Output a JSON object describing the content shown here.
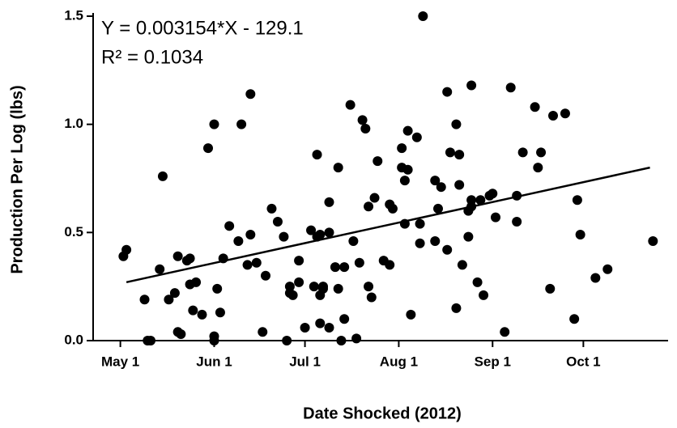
{
  "chart_data": {
    "type": "scatter",
    "x_label": "Date Shocked (2012)",
    "y_label": "Production Per Log (lbs)",
    "annotations": [
      "Y = 0.003154*X - 129.1",
      "R² = 0.1034"
    ],
    "color": "#000000",
    "xlim": [
      41021,
      41211
    ],
    "xticks": [
      {
        "value": 41030,
        "label": "May 1"
      },
      {
        "value": 41061,
        "label": "Jun 1"
      },
      {
        "value": 41091,
        "label": "Jul 1"
      },
      {
        "value": 41122,
        "label": "Aug 1"
      },
      {
        "value": 41153,
        "label": "Sep 1"
      },
      {
        "value": 41183,
        "label": "Oct 1"
      }
    ],
    "ylim": [
      0,
      1.5
    ],
    "yticks": [
      {
        "value": 0,
        "label": "0.0"
      },
      {
        "value": 0.5,
        "label": "0.5"
      },
      {
        "value": 1,
        "label": "1.0"
      },
      {
        "value": 1.5,
        "label": "1.5"
      }
    ],
    "x": [
      41031,
      41032,
      41038,
      41039,
      41040,
      41043,
      41044,
      41046,
      41048,
      41049,
      41049,
      41050,
      41052,
      41053,
      41053,
      41054,
      41055,
      41057,
      41059,
      41061,
      41061,
      41061,
      41062,
      41063,
      41064,
      41066,
      41069,
      41070,
      41072,
      41073,
      41073,
      41075,
      41077,
      41078,
      41080,
      41082,
      41084,
      41085,
      41086,
      41086,
      41087,
      41089,
      41089,
      41091,
      41093,
      41094,
      41095,
      41095,
      41096,
      41096,
      41096,
      41097,
      41097,
      41099,
      41099,
      41099,
      41101,
      41102,
      41102,
      41103,
      41104,
      41104,
      41106,
      41107,
      41108,
      41109,
      41110,
      41111,
      41112,
      41112,
      41113,
      41114,
      41115,
      41117,
      41119,
      41119,
      41120,
      41123,
      41123,
      41124,
      41124,
      41125,
      41125,
      41126,
      41128,
      41129,
      41129,
      41130,
      41134,
      41134,
      41135,
      41136,
      41138,
      41138,
      41139,
      41141,
      41141,
      41142,
      41142,
      41143,
      41145,
      41145,
      41146,
      41146,
      41146,
      41148,
      41150,
      41149,
      41152,
      41153,
      41154,
      41157,
      41159,
      41161,
      41161,
      41163,
      41167,
      41168,
      41169,
      41172,
      41173,
      41177,
      41180,
      41181,
      41182,
      41187,
      41191,
      41206
    ],
    "values": [
      0.39,
      0.42,
      0.19,
      0,
      0,
      0.33,
      0.76,
      0.19,
      0.22,
      0.39,
      0.04,
      0.03,
      0.37,
      0.26,
      0.38,
      0.14,
      0.27,
      0.12,
      0.89,
      0.02,
      1.0,
      0,
      0.24,
      0.13,
      0.38,
      0.53,
      0.46,
      1.0,
      0.35,
      0.49,
      1.14,
      0.36,
      0.04,
      0.3,
      0.61,
      0.55,
      0.48,
      0,
      0.22,
      0.25,
      0.21,
      0.27,
      0.37,
      0.06,
      0.51,
      0.25,
      0.48,
      0.86,
      0.08,
      0.21,
      0.49,
      0.25,
      0.24,
      0.06,
      0.64,
      0.5,
      0.34,
      0.8,
      0.24,
      0,
      0.1,
      0.34,
      1.09,
      0.46,
      0.01,
      0.36,
      1.02,
      0.98,
      0.62,
      0.25,
      0.2,
      0.66,
      0.83,
      0.37,
      0.35,
      0.63,
      0.61,
      0.8,
      0.89,
      0.54,
      0.74,
      0.79,
      0.97,
      0.12,
      0.94,
      0.45,
      0.54,
      1.5,
      0.46,
      0.74,
      0.61,
      0.71,
      1.15,
      0.42,
      0.87,
      0.15,
      1.0,
      0.86,
      0.72,
      0.35,
      0.48,
      0.6,
      0.65,
      1.18,
      0.62,
      0.27,
      0.21,
      0.65,
      0.67,
      0.68,
      0.57,
      0.04,
      1.17,
      0.55,
      0.67,
      0.87,
      1.08,
      0.8,
      0.87,
      0.24,
      1.04,
      1.05,
      0.1,
      0.65,
      0.49,
      0.29,
      0.33,
      0.46
    ],
    "fit_line": {
      "x": [
        41032,
        41205
      ],
      "y": [
        0.27,
        0.8
      ]
    }
  }
}
